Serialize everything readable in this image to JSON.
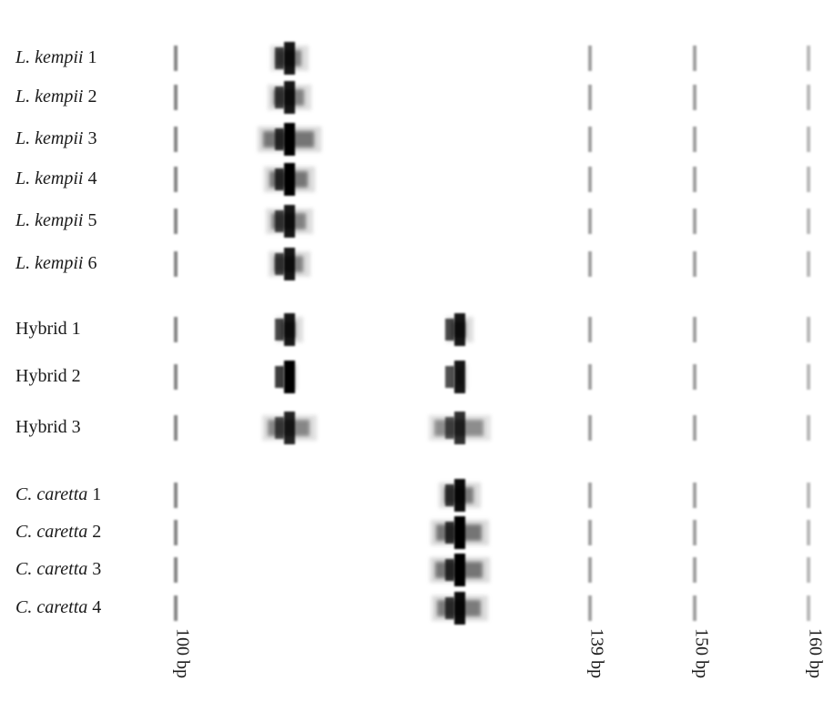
{
  "rows": [
    {
      "name": "L. kempii",
      "number": "1",
      "italic": true
    },
    {
      "name": "L. kempii",
      "number": "2",
      "italic": true
    },
    {
      "name": "L. kempii",
      "number": "3",
      "italic": true
    },
    {
      "name": "L. kempii",
      "number": "4",
      "italic": true
    },
    {
      "name": "L. kempii",
      "number": "5",
      "italic": true
    },
    {
      "name": "L. kempii",
      "number": "6",
      "italic": true
    },
    {
      "name": "Hybrid",
      "number": "1",
      "italic": false
    },
    {
      "name": "Hybrid",
      "number": "2",
      "italic": false
    },
    {
      "name": "Hybrid",
      "number": "3",
      "italic": false
    },
    {
      "name": "C. caretta",
      "number": "1",
      "italic": true
    },
    {
      "name": "C. caretta",
      "number": "2",
      "italic": true
    },
    {
      "name": "C. caretta",
      "number": "3",
      "italic": true
    },
    {
      "name": "C. caretta",
      "number": "4",
      "italic": true
    }
  ],
  "markers": [
    "100 bp",
    "139 bp",
    "150 bp",
    "160 bp"
  ]
}
